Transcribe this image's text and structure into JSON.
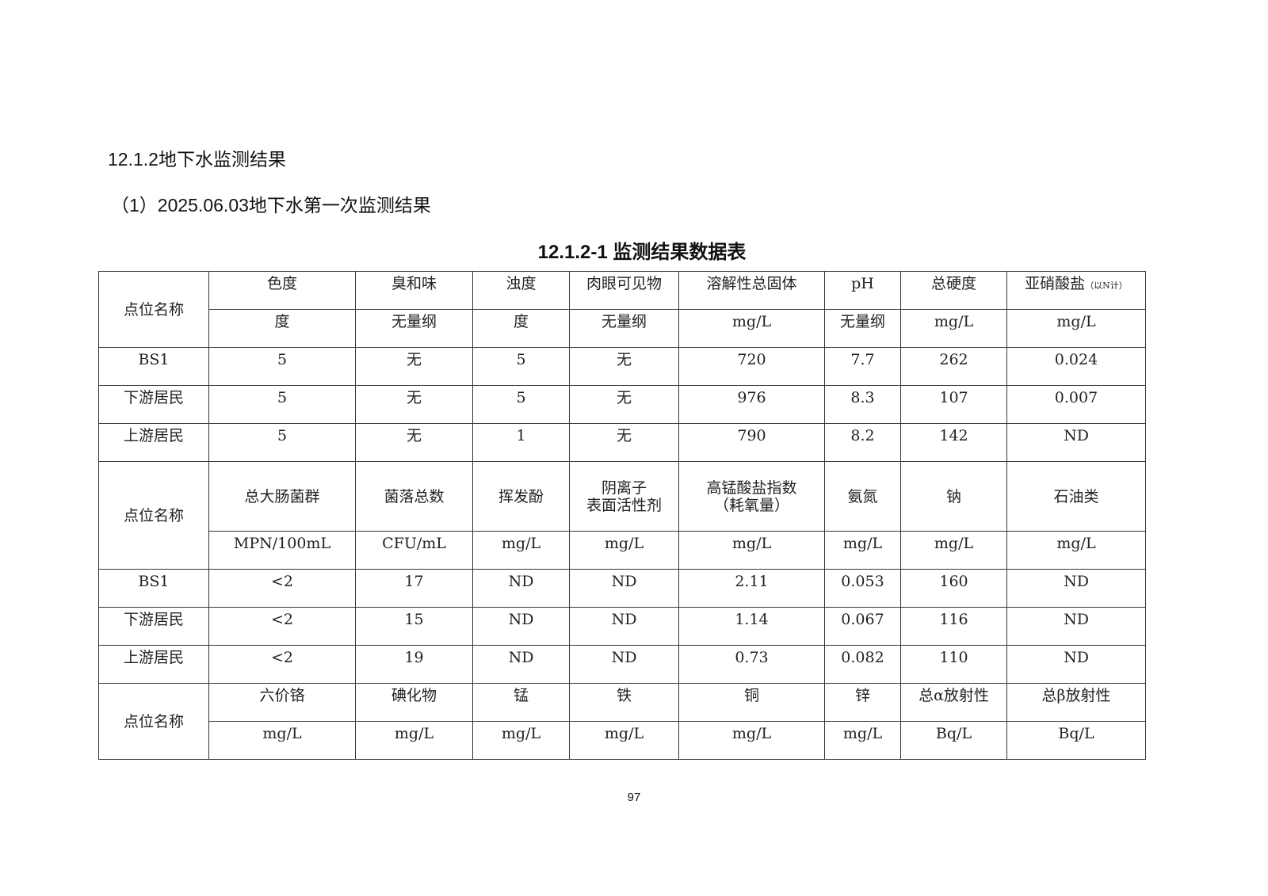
{
  "section_title": "12.1.2地下水监测结果",
  "subsection_title": "（1）2025.06.03地下水第一次监测结果",
  "table_caption": "12.1.2-1 监测结果数据表",
  "table": {
    "site_label": "点位名称",
    "blocks": [
      {
        "params": [
          "色度",
          "臭和味",
          "浊度",
          "肉眼可见物",
          "溶解性总固体",
          "pH",
          "总硬度",
          "亚硝酸盐"
        ],
        "param_note": "（以N计）",
        "units": [
          "度",
          "无量纲",
          "度",
          "无量纲",
          "mg/L",
          "无量纲",
          "mg/L",
          "mg/L"
        ],
        "rows": [
          {
            "site": "BS1",
            "values": [
              "5",
              "无",
              "5",
              "无",
              "720",
              "7.7",
              "262",
              "0.024"
            ]
          },
          {
            "site": "下游居民",
            "values": [
              "5",
              "无",
              "5",
              "无",
              "976",
              "8.3",
              "107",
              "0.007"
            ]
          },
          {
            "site": "上游居民",
            "values": [
              "5",
              "无",
              "1",
              "无",
              "790",
              "8.2",
              "142",
              "ND"
            ]
          }
        ]
      },
      {
        "params": [
          "总大肠菌群",
          "菌落总数",
          "挥发酚",
          "阴离子\n表面活性剂",
          "高锰酸盐指数\n（耗氧量）",
          "氨氮",
          "钠",
          "石油类"
        ],
        "units": [
          "MPN/100mL",
          "CFU/mL",
          "mg/L",
          "mg/L",
          "mg/L",
          "mg/L",
          "mg/L",
          "mg/L"
        ],
        "rows": [
          {
            "site": "BS1",
            "values": [
              "<2",
              "17",
              "ND",
              "ND",
              "2.11",
              "0.053",
              "160",
              "ND"
            ]
          },
          {
            "site": "下游居民",
            "values": [
              "<2",
              "15",
              "ND",
              "ND",
              "1.14",
              "0.067",
              "116",
              "ND"
            ]
          },
          {
            "site": "上游居民",
            "values": [
              "<2",
              "19",
              "ND",
              "ND",
              "0.73",
              "0.082",
              "110",
              "ND"
            ]
          }
        ]
      },
      {
        "params": [
          "六价铬",
          "碘化物",
          "锰",
          "铁",
          "铜",
          "锌",
          "总α放射性",
          "总β放射性"
        ],
        "units": [
          "mg/L",
          "mg/L",
          "mg/L",
          "mg/L",
          "mg/L",
          "mg/L",
          "Bq/L",
          "Bq/L"
        ],
        "rows": []
      }
    ]
  },
  "page_number": "97"
}
